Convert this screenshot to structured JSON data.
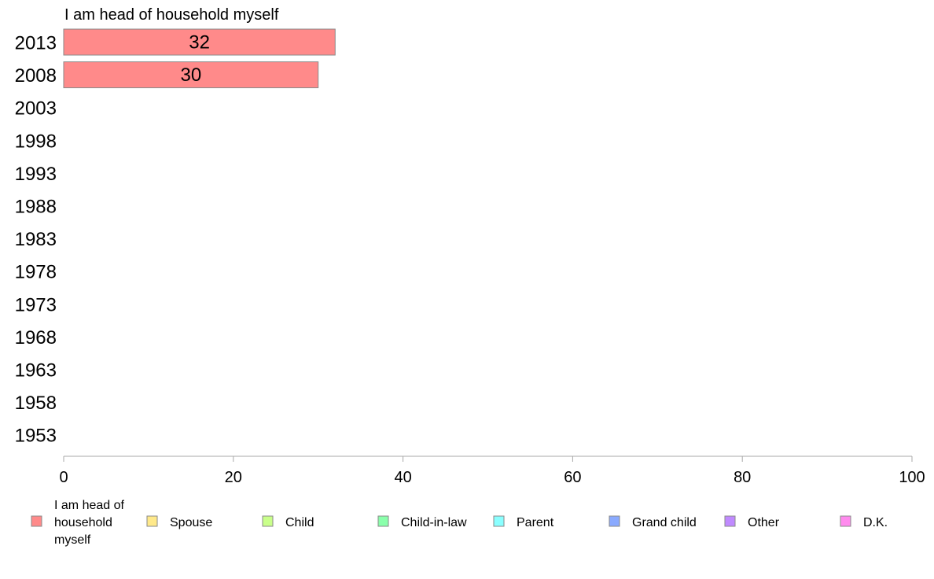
{
  "chart_data": {
    "type": "bar",
    "orientation": "horizontal",
    "title": "",
    "xlabel": "",
    "ylabel": "",
    "xlim": [
      0,
      100
    ],
    "x_ticks": [
      0,
      20,
      40,
      60,
      80,
      100
    ],
    "grid": false,
    "legend_position": "bottom",
    "categories": [
      "2013",
      "2008",
      "2003",
      "1998",
      "1993",
      "1988",
      "1983",
      "1978",
      "1973",
      "1968",
      "1963",
      "1958",
      "1953"
    ],
    "series": [
      {
        "name": "I am head of household myself",
        "color": "#ff8a8a",
        "values": [
          32,
          30,
          null,
          null,
          null,
          null,
          null,
          null,
          null,
          null,
          null,
          null,
          null
        ]
      }
    ],
    "annotation": "I am head of household myself",
    "legend": [
      {
        "label": "I am head of household myself",
        "color": "#ff8a8a"
      },
      {
        "label": "Spouse",
        "color": "#ffe98a"
      },
      {
        "label": "Child",
        "color": "#c9ff8a"
      },
      {
        "label": "Child-in-law",
        "color": "#8affab"
      },
      {
        "label": "Parent",
        "color": "#8affff"
      },
      {
        "label": "Grand child",
        "color": "#8aaaff"
      },
      {
        "label": "Other",
        "color": "#c08aff"
      },
      {
        "label": "D.K.",
        "color": "#ff8aee"
      }
    ]
  }
}
